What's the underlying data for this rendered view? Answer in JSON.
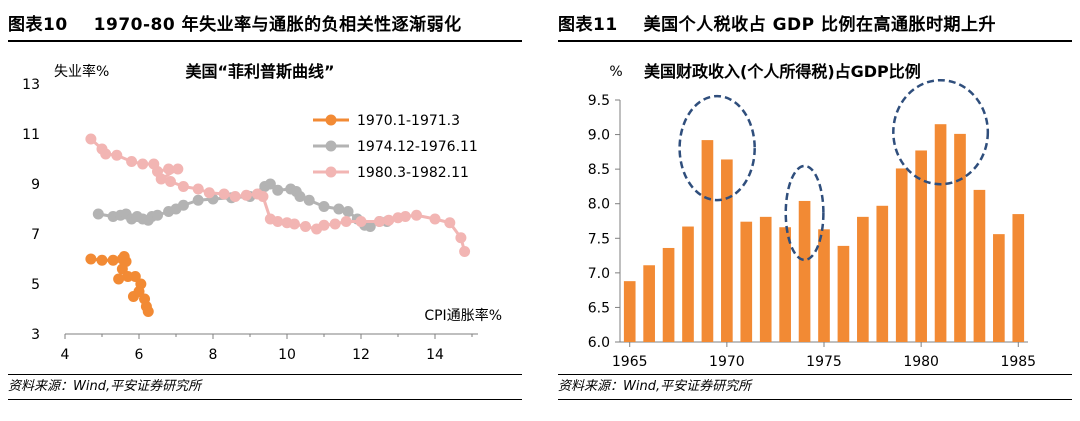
{
  "left_panel": {
    "title_prefix": "图表10",
    "title_text": "1970-80 年失业率与通胀的负相关性逐渐弱化",
    "source": "资料来源：Wind,平安证券研究所"
  },
  "right_panel": {
    "title_prefix": "图表11",
    "title_text": "美国个人税收占 GDP 比例在高通胀时期上升",
    "source": "资料来源：Wind,平安证券研究所"
  },
  "colors": {
    "orange": "#F28A34",
    "gray": "#B3B3B3",
    "pink": "#F2B5B3",
    "bar": "#F28A34",
    "circle": "#2F4E7C",
    "axis": "#7F7F7F"
  },
  "chart_data": [
    {
      "id": "phillips",
      "type": "scatter",
      "title": "美国“菲利普斯曲线”",
      "xlabel": "CPI通胀率%",
      "ylabel": "失业率%",
      "xlim": [
        4,
        15
      ],
      "ylim": [
        3,
        13
      ],
      "x_ticks": [
        4,
        6,
        8,
        10,
        12,
        14
      ],
      "y_ticks": [
        3,
        5,
        7,
        9,
        11,
        13
      ],
      "series": [
        {
          "name": "1970.1-1971.3",
          "color_key": "orange",
          "points": [
            [
              4.7,
              6.0
            ],
            [
              5.0,
              5.95
            ],
            [
              5.3,
              5.95
            ],
            [
              5.55,
              6.0
            ],
            [
              5.6,
              6.1
            ],
            [
              5.65,
              5.9
            ],
            [
              5.55,
              5.6
            ],
            [
              5.7,
              5.3
            ],
            [
              5.45,
              5.2
            ],
            [
              5.9,
              5.3
            ],
            [
              6.05,
              5.0
            ],
            [
              5.85,
              4.5
            ],
            [
              6.0,
              4.7
            ],
            [
              6.15,
              4.4
            ],
            [
              6.2,
              4.1
            ],
            [
              6.25,
              3.9
            ]
          ]
        },
        {
          "name": "1974.12-1976.11",
          "color_key": "gray",
          "points": [
            [
              4.9,
              7.8
            ],
            [
              5.3,
              7.7
            ],
            [
              5.5,
              7.75
            ],
            [
              5.65,
              7.8
            ],
            [
              5.8,
              7.6
            ],
            [
              5.95,
              7.7
            ],
            [
              6.1,
              7.6
            ],
            [
              6.25,
              7.55
            ],
            [
              6.35,
              7.7
            ],
            [
              6.5,
              7.75
            ],
            [
              6.8,
              7.9
            ],
            [
              7.0,
              8.0
            ],
            [
              7.2,
              8.15
            ],
            [
              7.6,
              8.35
            ],
            [
              8.0,
              8.4
            ],
            [
              8.5,
              8.45
            ],
            [
              9.0,
              8.5
            ],
            [
              9.4,
              8.9
            ],
            [
              9.55,
              9.0
            ],
            [
              9.75,
              8.75
            ],
            [
              10.1,
              8.8
            ],
            [
              10.25,
              8.7
            ],
            [
              10.35,
              8.5
            ],
            [
              10.6,
              8.35
            ],
            [
              11.0,
              8.1
            ],
            [
              11.4,
              8.0
            ],
            [
              11.65,
              7.9
            ],
            [
              11.9,
              7.6
            ],
            [
              12.1,
              7.35
            ],
            [
              12.25,
              7.3
            ],
            [
              12.5,
              7.5
            ],
            [
              12.7,
              7.5
            ]
          ]
        },
        {
          "name": "1980.3-1982.11",
          "color_key": "pink",
          "points": [
            [
              4.7,
              10.8
            ],
            [
              5.0,
              10.4
            ],
            [
              5.1,
              10.2
            ],
            [
              5.4,
              10.15
            ],
            [
              5.8,
              9.9
            ],
            [
              6.1,
              9.8
            ],
            [
              6.4,
              9.8
            ],
            [
              6.5,
              9.5
            ],
            [
              6.8,
              9.6
            ],
            [
              7.05,
              9.6
            ],
            [
              6.6,
              9.2
            ],
            [
              6.85,
              9.1
            ],
            [
              7.2,
              8.9
            ],
            [
              7.6,
              8.8
            ],
            [
              7.9,
              8.65
            ],
            [
              8.3,
              8.6
            ],
            [
              8.6,
              8.5
            ],
            [
              8.9,
              8.55
            ],
            [
              9.2,
              8.6
            ],
            [
              9.35,
              8.5
            ],
            [
              9.55,
              7.6
            ],
            [
              9.75,
              7.5
            ],
            [
              10.0,
              7.45
            ],
            [
              10.2,
              7.4
            ],
            [
              10.5,
              7.3
            ],
            [
              10.8,
              7.2
            ],
            [
              11.0,
              7.35
            ],
            [
              11.3,
              7.4
            ],
            [
              11.6,
              7.5
            ],
            [
              12.0,
              7.5
            ],
            [
              12.5,
              7.5
            ],
            [
              12.75,
              7.55
            ],
            [
              13.0,
              7.65
            ],
            [
              13.2,
              7.7
            ],
            [
              13.5,
              7.75
            ],
            [
              14.0,
              7.6
            ],
            [
              14.4,
              7.45
            ],
            [
              14.7,
              6.85
            ],
            [
              14.8,
              6.3
            ]
          ]
        }
      ]
    },
    {
      "id": "tax",
      "type": "bar",
      "title": "美国财政收入(个人所得税)占GDP比例",
      "ylabel": "%",
      "x_ticks": [
        1965,
        1970,
        1975,
        1980,
        1985
      ],
      "ylim": [
        6.0,
        9.5
      ],
      "y_ticks": [
        6.0,
        6.5,
        7.0,
        7.5,
        8.0,
        8.5,
        9.0,
        9.5
      ],
      "categories": [
        1965,
        1966,
        1967,
        1968,
        1969,
        1970,
        1971,
        1972,
        1973,
        1974,
        1975,
        1976,
        1977,
        1978,
        1979,
        1980,
        1981,
        1982,
        1983,
        1984,
        1985
      ],
      "values": [
        6.88,
        7.11,
        7.36,
        7.67,
        8.92,
        8.64,
        7.74,
        7.81,
        7.66,
        8.04,
        7.63,
        7.39,
        7.81,
        7.97,
        8.51,
        8.77,
        9.15,
        9.01,
        8.2,
        7.56,
        7.85
      ],
      "highlights": [
        {
          "label": "1969-1970",
          "from_year": 1969,
          "to_year": 1970
        },
        {
          "label": "1974",
          "from_year": 1974,
          "to_year": 1974
        },
        {
          "label": "1980-1982",
          "from_year": 1980,
          "to_year": 1982
        }
      ]
    }
  ]
}
